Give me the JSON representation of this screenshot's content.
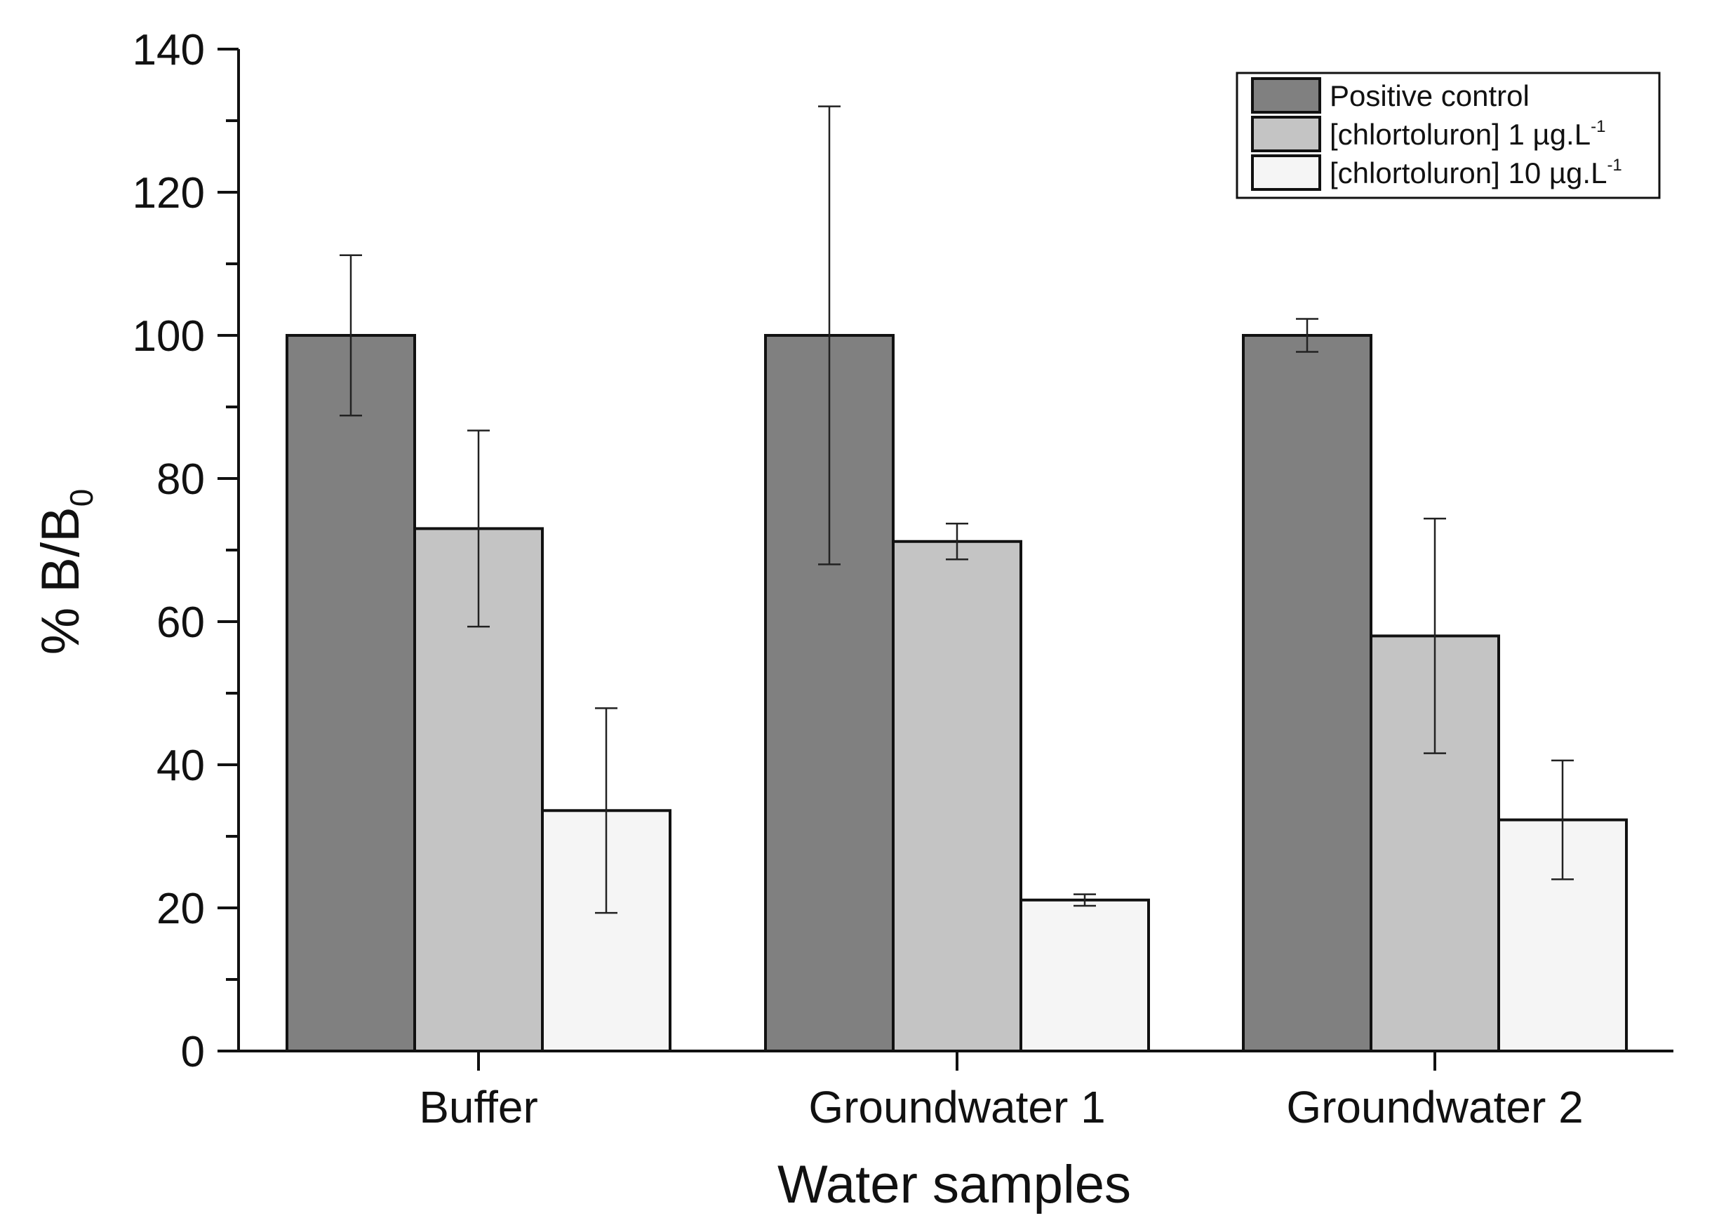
{
  "chart_data": {
    "type": "bar",
    "title": "",
    "xlabel": "Water samples",
    "ylabel": {
      "main": "% B/B",
      "subscript": "0"
    },
    "ylim": [
      0,
      140
    ],
    "yticks": [
      0,
      20,
      40,
      60,
      80,
      100,
      120,
      140
    ],
    "minor_tick_step": 10,
    "grid": false,
    "legend_position": "top-right",
    "categories": [
      "Buffer",
      "Groundwater 1",
      "Groundwater 2"
    ],
    "series": [
      {
        "name": "Positive control",
        "legend": {
          "text": "Positive control",
          "sup": ""
        },
        "color": "#808080",
        "values": [
          100,
          100,
          100
        ],
        "errors": [
          11.2,
          32,
          2.3
        ]
      },
      {
        "name": "[chlortoluron] 1 µg.L-1",
        "legend": {
          "text": "[chlortoluron] 1 µg.L",
          "sup": "-1"
        },
        "color": "#c4c4c4",
        "values": [
          73,
          71.2,
          58
        ],
        "errors": [
          13.7,
          2.5,
          16.4
        ]
      },
      {
        "name": "[chlortoluron] 10 µg.L-1",
        "legend": {
          "text": "[chlortoluron] 10 µg.L",
          "sup": "-1"
        },
        "color": "#f5f5f5",
        "values": [
          33.6,
          21.1,
          32.3
        ],
        "errors": [
          14.3,
          0.8,
          8.3
        ]
      }
    ]
  }
}
